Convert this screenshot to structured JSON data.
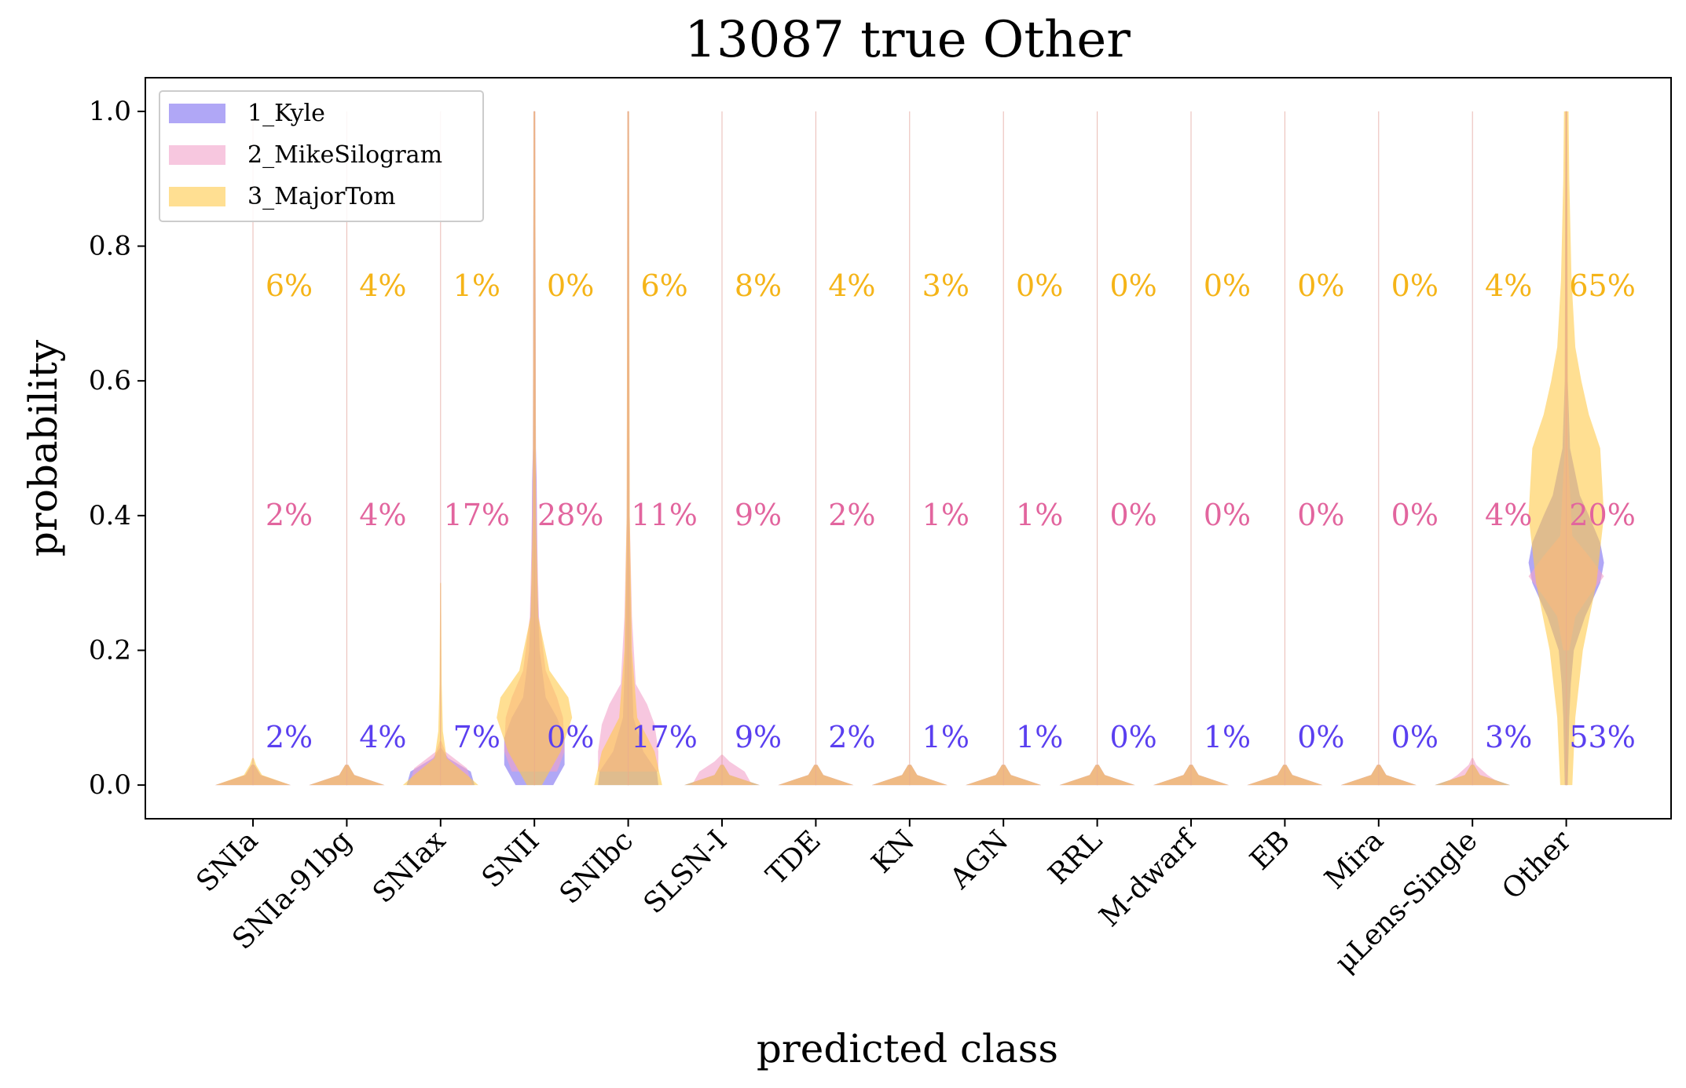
{
  "chart_data": {
    "type": "violin",
    "title": "13087 true Other",
    "xlabel": "predicted class",
    "ylabel": "probability",
    "ylim": [
      -0.05,
      1.05
    ],
    "yticks": [
      "0.0",
      "0.2",
      "0.4",
      "0.6",
      "0.8",
      "1.0"
    ],
    "categories": [
      "SNIa",
      "SNIa-91bg",
      "SNIax",
      "SNII",
      "SNIbc",
      "SLSN-I",
      "TDE",
      "KN",
      "AGN",
      "RRL",
      "M-dwarf",
      "EB",
      "Mira",
      "μLens-Single",
      "Other"
    ],
    "legend_position": "top-left",
    "series": [
      {
        "name": "1_Kyle",
        "color": "#7b6cf0",
        "label_color": "#5a3ff0",
        "label_y": 0.07,
        "percent_labels": [
          "2%",
          "4%",
          "7%",
          "0%",
          "17%",
          "9%",
          "2%",
          "1%",
          "1%",
          "0%",
          "1%",
          "0%",
          "0%",
          "3%",
          "53%"
        ],
        "shapes": [
          [
            [
              0,
              0.5
            ],
            [
              0.015,
              0.1
            ],
            [
              0.03,
              0.02
            ]
          ],
          [
            [
              0,
              0.5
            ],
            [
              0.015,
              0.1
            ],
            [
              0.03,
              0.02
            ]
          ],
          [
            [
              0,
              0.45
            ],
            [
              0.02,
              0.4
            ],
            [
              0.04,
              0.1
            ],
            [
              0.055,
              0.01
            ]
          ],
          [
            [
              0,
              0.25
            ],
            [
              0.03,
              0.4
            ],
            [
              0.07,
              0.4
            ],
            [
              0.1,
              0.3
            ],
            [
              0.13,
              0.15
            ],
            [
              0.2,
              0.07
            ],
            [
              0.3,
              0.04
            ],
            [
              0.45,
              0.03
            ],
            [
              0.5,
              0.02
            ],
            [
              1.0,
              0.01
            ]
          ],
          [
            [
              0,
              0.4
            ],
            [
              0.02,
              0.38
            ],
            [
              0.05,
              0.2
            ],
            [
              0.1,
              0.07
            ],
            [
              0.2,
              0.04
            ],
            [
              0.35,
              0.02
            ],
            [
              0.5,
              0.015
            ],
            [
              1.0,
              0.01
            ]
          ],
          [
            [
              0,
              0.5
            ],
            [
              0.015,
              0.1
            ],
            [
              0.03,
              0.02
            ]
          ],
          [
            [
              0,
              0.5
            ],
            [
              0.015,
              0.1
            ],
            [
              0.03,
              0.02
            ]
          ],
          [
            [
              0,
              0.5
            ],
            [
              0.015,
              0.1
            ],
            [
              0.03,
              0.02
            ]
          ],
          [
            [
              0,
              0.5
            ],
            [
              0.015,
              0.1
            ],
            [
              0.03,
              0.02
            ]
          ],
          [
            [
              0,
              0.5
            ],
            [
              0.015,
              0.1
            ],
            [
              0.03,
              0.02
            ]
          ],
          [
            [
              0,
              0.5
            ],
            [
              0.015,
              0.1
            ],
            [
              0.03,
              0.02
            ]
          ],
          [
            [
              0,
              0.5
            ],
            [
              0.015,
              0.1
            ],
            [
              0.03,
              0.02
            ]
          ],
          [
            [
              0,
              0.5
            ],
            [
              0.015,
              0.1
            ],
            [
              0.03,
              0.02
            ]
          ],
          [
            [
              0,
              0.5
            ],
            [
              0.015,
              0.1
            ],
            [
              0.03,
              0.02
            ]
          ],
          [
            [
              0,
              0.02
            ],
            [
              0.05,
              0.03
            ],
            [
              0.1,
              0.04
            ],
            [
              0.15,
              0.06
            ],
            [
              0.2,
              0.1
            ],
            [
              0.25,
              0.25
            ],
            [
              0.3,
              0.45
            ],
            [
              0.33,
              0.5
            ],
            [
              0.36,
              0.45
            ],
            [
              0.4,
              0.3
            ],
            [
              0.43,
              0.18
            ],
            [
              0.5,
              0.05
            ],
            [
              0.6,
              0.02
            ],
            [
              1.0,
              0.01
            ]
          ]
        ]
      },
      {
        "name": "2_MikeSilogram",
        "color": "#f2a1c9",
        "label_color": "#e2659e",
        "label_y": 0.4,
        "percent_labels": [
          "2%",
          "4%",
          "17%",
          "28%",
          "11%",
          "9%",
          "2%",
          "1%",
          "1%",
          "0%",
          "0%",
          "0%",
          "0%",
          "4%",
          "20%"
        ],
        "shapes": [
          [
            [
              0,
              0.5
            ],
            [
              0.015,
              0.1
            ],
            [
              0.03,
              0.02
            ]
          ],
          [
            [
              0,
              0.5
            ],
            [
              0.015,
              0.1
            ],
            [
              0.03,
              0.02
            ]
          ],
          [
            [
              0,
              0.42
            ],
            [
              0.025,
              0.35
            ],
            [
              0.05,
              0.06
            ],
            [
              0.065,
              0.01
            ]
          ],
          [
            [
              0.02,
              0.3
            ],
            [
              0.05,
              0.4
            ],
            [
              0.1,
              0.38
            ],
            [
              0.13,
              0.3
            ],
            [
              0.17,
              0.15
            ],
            [
              0.25,
              0.06
            ],
            [
              0.35,
              0.04
            ],
            [
              0.5,
              0.02
            ],
            [
              1.0,
              0.01
            ]
          ],
          [
            [
              0.02,
              0.4
            ],
            [
              0.05,
              0.4
            ],
            [
              0.09,
              0.35
            ],
            [
              0.12,
              0.25
            ],
            [
              0.15,
              0.1
            ],
            [
              0.25,
              0.05
            ],
            [
              0.4,
              0.02
            ],
            [
              1.0,
              0.01
            ]
          ],
          [
            [
              0,
              0.4
            ],
            [
              0.02,
              0.3
            ],
            [
              0.035,
              0.1
            ],
            [
              0.045,
              0.01
            ]
          ],
          [
            [
              0,
              0.5
            ],
            [
              0.015,
              0.1
            ],
            [
              0.03,
              0.02
            ]
          ],
          [
            [
              0,
              0.5
            ],
            [
              0.015,
              0.1
            ],
            [
              0.03,
              0.02
            ]
          ],
          [
            [
              0,
              0.5
            ],
            [
              0.015,
              0.1
            ],
            [
              0.03,
              0.02
            ]
          ],
          [
            [
              0,
              0.5
            ],
            [
              0.015,
              0.1
            ],
            [
              0.03,
              0.02
            ]
          ],
          [
            [
              0,
              0.5
            ],
            [
              0.015,
              0.1
            ],
            [
              0.03,
              0.02
            ]
          ],
          [
            [
              0,
              0.5
            ],
            [
              0.015,
              0.1
            ],
            [
              0.03,
              0.02
            ]
          ],
          [
            [
              0,
              0.5
            ],
            [
              0.015,
              0.1
            ],
            [
              0.03,
              0.02
            ]
          ],
          [
            [
              0,
              0.4
            ],
            [
              0.015,
              0.2
            ],
            [
              0.03,
              0.05
            ],
            [
              0.04,
              0.01
            ]
          ],
          [
            [
              0.2,
              0.04
            ],
            [
              0.25,
              0.12
            ],
            [
              0.28,
              0.3
            ],
            [
              0.31,
              0.5
            ],
            [
              0.34,
              0.3
            ],
            [
              0.37,
              0.08
            ],
            [
              0.5,
              0.02
            ],
            [
              1.0,
              0.01
            ]
          ]
        ]
      },
      {
        "name": "3_MajorTom",
        "color": "#ffc94a",
        "label_color": "#f5b418",
        "label_y": 0.74,
        "percent_labels": [
          "6%",
          "4%",
          "1%",
          "0%",
          "6%",
          "8%",
          "4%",
          "3%",
          "0%",
          "0%",
          "0%",
          "0%",
          "0%",
          "4%",
          "65%"
        ],
        "shapes": [
          [
            [
              0,
              0.5
            ],
            [
              0.015,
              0.12
            ],
            [
              0.03,
              0.04
            ],
            [
              0.04,
              0.01
            ]
          ],
          [
            [
              0,
              0.5
            ],
            [
              0.015,
              0.1
            ],
            [
              0.03,
              0.02
            ]
          ],
          [
            [
              0,
              0.5
            ],
            [
              0.015,
              0.35
            ],
            [
              0.04,
              0.08
            ],
            [
              0.08,
              0.03
            ],
            [
              0.15,
              0.015
            ],
            [
              0.3,
              0.005
            ]
          ],
          [
            [
              0,
              0.1
            ],
            [
              0.05,
              0.35
            ],
            [
              0.1,
              0.5
            ],
            [
              0.13,
              0.45
            ],
            [
              0.17,
              0.2
            ],
            [
              0.25,
              0.05
            ],
            [
              0.4,
              0.02
            ],
            [
              1.0,
              0.01
            ]
          ],
          [
            [
              0,
              0.45
            ],
            [
              0.05,
              0.35
            ],
            [
              0.1,
              0.12
            ],
            [
              0.2,
              0.05
            ],
            [
              0.4,
              0.02
            ],
            [
              1.0,
              0.01
            ]
          ],
          [
            [
              0,
              0.5
            ],
            [
              0.015,
              0.1
            ],
            [
              0.03,
              0.02
            ]
          ],
          [
            [
              0,
              0.5
            ],
            [
              0.015,
              0.1
            ],
            [
              0.03,
              0.02
            ]
          ],
          [
            [
              0,
              0.5
            ],
            [
              0.015,
              0.1
            ],
            [
              0.03,
              0.02
            ]
          ],
          [
            [
              0,
              0.5
            ],
            [
              0.015,
              0.1
            ],
            [
              0.03,
              0.02
            ]
          ],
          [
            [
              0,
              0.5
            ],
            [
              0.015,
              0.1
            ],
            [
              0.03,
              0.02
            ]
          ],
          [
            [
              0,
              0.5
            ],
            [
              0.015,
              0.1
            ],
            [
              0.03,
              0.02
            ]
          ],
          [
            [
              0,
              0.5
            ],
            [
              0.015,
              0.1
            ],
            [
              0.03,
              0.02
            ]
          ],
          [
            [
              0,
              0.5
            ],
            [
              0.015,
              0.1
            ],
            [
              0.03,
              0.02
            ]
          ],
          [
            [
              0,
              0.5
            ],
            [
              0.015,
              0.1
            ],
            [
              0.03,
              0.02
            ]
          ],
          [
            [
              0,
              0.08
            ],
            [
              0.1,
              0.12
            ],
            [
              0.2,
              0.22
            ],
            [
              0.3,
              0.4
            ],
            [
              0.4,
              0.5
            ],
            [
              0.5,
              0.45
            ],
            [
              0.55,
              0.3
            ],
            [
              0.6,
              0.2
            ],
            [
              0.65,
              0.12
            ],
            [
              0.75,
              0.07
            ],
            [
              0.9,
              0.04
            ],
            [
              1.0,
              0.03
            ]
          ]
        ]
      }
    ]
  }
}
